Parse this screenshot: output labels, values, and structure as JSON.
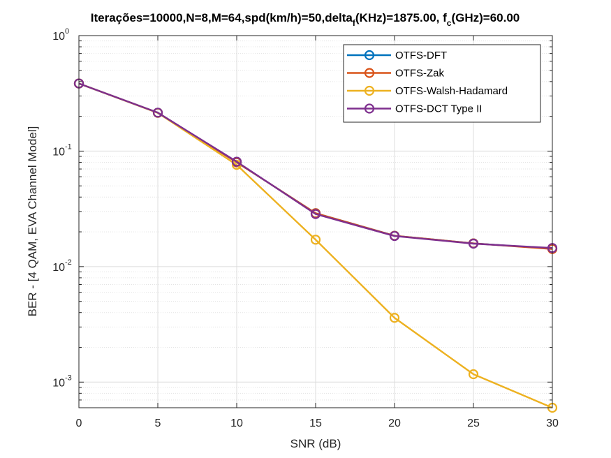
{
  "chart_data": {
    "type": "line",
    "title": {
      "part1": "Iterações=10000,N=8,M=64,spd(km/h)=50,delta",
      "sub1": "f",
      "part2": "(KHz)=1875.00, f",
      "sub2": "c",
      "part3": "(GHz)=60.00"
    },
    "xlabel": "SNR (dB)",
    "ylabel": "BER - [4 QAM, EVA Channel Model]",
    "x": [
      0,
      5,
      10,
      15,
      20,
      25,
      30
    ],
    "xlim": [
      0,
      30
    ],
    "ylim": [
      0.0006,
      1
    ],
    "yscale": "log",
    "grid": true,
    "legend_position": "top-right",
    "xticks": [
      "0",
      "5",
      "10",
      "15",
      "20",
      "25",
      "30"
    ],
    "yticks": [
      {
        "value": 1,
        "base": "10",
        "exp": "0"
      },
      {
        "value": 0.1,
        "base": "10",
        "exp": "-1"
      },
      {
        "value": 0.01,
        "base": "10",
        "exp": "-2"
      },
      {
        "value": 0.001,
        "base": "10",
        "exp": "-3"
      }
    ],
    "series": [
      {
        "name": "OTFS-DFT",
        "color": "#0072BD",
        "values": [
          0.385,
          0.215,
          0.08,
          0.029,
          0.0185,
          0.0159,
          0.0143
        ]
      },
      {
        "name": "OTFS-Zak",
        "color": "#D95319",
        "values": [
          0.385,
          0.215,
          0.08,
          0.029,
          0.0185,
          0.0159,
          0.0142
        ]
      },
      {
        "name": "OTFS-Walsh-Hadamard",
        "color": "#EDB120",
        "values": [
          0.385,
          0.214,
          0.076,
          0.0171,
          0.0036,
          0.00117,
          0.0006
        ]
      },
      {
        "name": "OTFS-DCT Type II",
        "color": "#7E2F8E",
        "values": [
          0.385,
          0.215,
          0.081,
          0.0285,
          0.0184,
          0.0158,
          0.0145
        ]
      }
    ]
  }
}
